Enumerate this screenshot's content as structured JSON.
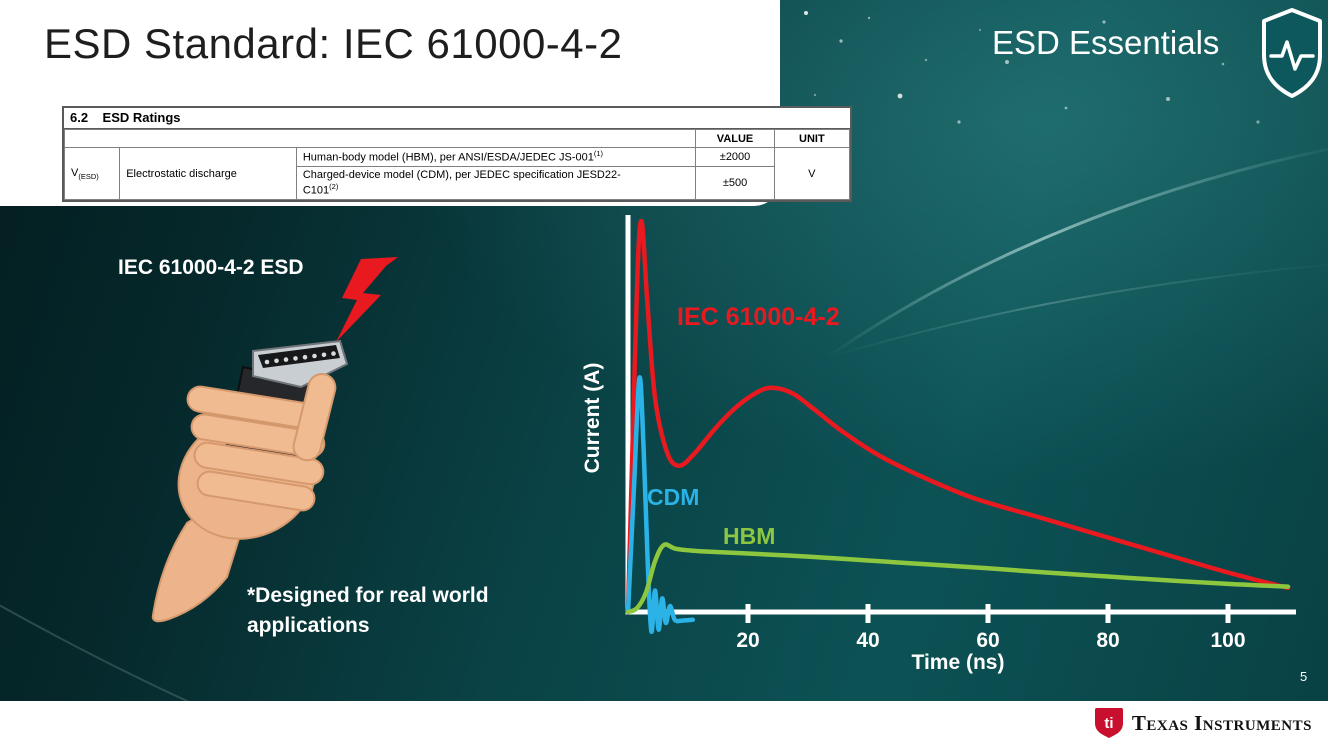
{
  "slide": {
    "title": "ESD Standard: IEC 61000-4-2",
    "brand": "ESD Essentials",
    "page_number": "5",
    "footer_text": "Texas Instruments",
    "footer_bug_text": "ti"
  },
  "ratings_table": {
    "section_title": "6.2    ESD Ratings",
    "col_value": "VALUE",
    "col_unit": "UNIT",
    "param_symbol": "V",
    "param_symbol_sub": "(ESD)",
    "param_name": "Electrostatic discharge",
    "rows": [
      {
        "model": "Human-body model (HBM), per ANSI/ESDA/JEDEC JS-001",
        "sup": "(1)",
        "value": "±2000"
      },
      {
        "model": "Charged-device model (CDM), per JEDEC specification JESD22-",
        "model2": "C101",
        "sup": "(2)",
        "value": "±500"
      }
    ],
    "unit": "V"
  },
  "illustration": {
    "label": "IEC 61000-4-2 ESD",
    "note_line1": "*Designed for real world",
    "note_line2": "applications"
  },
  "chart_data": {
    "type": "line",
    "title": "",
    "xlabel": "Time (ns)",
    "ylabel": "Current (A)",
    "x_ticks": [
      20,
      40,
      60,
      80,
      100
    ],
    "y_ticks": [],
    "xlim": [
      0,
      110
    ],
    "grid": false,
    "legend": "inline-labels",
    "series": [
      {
        "name": "IEC 61000-4-2",
        "color": "#e8191f",
        "points": [
          [
            0,
            0
          ],
          [
            0.8,
            0.45
          ],
          [
            1.6,
            0.88
          ],
          [
            2.3,
            1.0
          ],
          [
            3.2,
            0.8
          ],
          [
            4.5,
            0.55
          ],
          [
            6.5,
            0.41
          ],
          [
            8.5,
            0.375
          ],
          [
            11,
            0.405
          ],
          [
            14.5,
            0.47
          ],
          [
            18,
            0.525
          ],
          [
            21.5,
            0.563
          ],
          [
            24,
            0.575
          ],
          [
            27.5,
            0.56
          ],
          [
            31,
            0.52
          ],
          [
            36,
            0.46
          ],
          [
            42,
            0.4
          ],
          [
            50,
            0.34
          ],
          [
            58,
            0.29
          ],
          [
            68,
            0.245
          ],
          [
            78,
            0.2
          ],
          [
            88,
            0.155
          ],
          [
            98,
            0.11
          ],
          [
            104,
            0.085
          ],
          [
            110,
            0.062
          ]
        ]
      },
      {
        "name": "CDM",
        "color": "#2bb3e8",
        "points": [
          [
            0,
            0
          ],
          [
            1.0,
            0.32
          ],
          [
            1.9,
            0.6
          ],
          [
            2.6,
            0.42
          ],
          [
            3.3,
            0.12
          ],
          [
            3.9,
            -0.05
          ],
          [
            4.5,
            0.055
          ],
          [
            5.1,
            -0.045
          ],
          [
            5.7,
            0.035
          ],
          [
            6.3,
            -0.028
          ],
          [
            7.0,
            0.015
          ],
          [
            7.8,
            -0.02
          ],
          [
            9,
            -0.022
          ],
          [
            10.8,
            -0.02
          ]
        ]
      },
      {
        "name": "HBM",
        "color": "#8dc63f",
        "points": [
          [
            0,
            0
          ],
          [
            1.5,
            0.01
          ],
          [
            3,
            0.05
          ],
          [
            4.5,
            0.13
          ],
          [
            6,
            0.172
          ],
          [
            8,
            0.162
          ],
          [
            12,
            0.156
          ],
          [
            20,
            0.15
          ],
          [
            30,
            0.142
          ],
          [
            40,
            0.132
          ],
          [
            50,
            0.122
          ],
          [
            60,
            0.112
          ],
          [
            70,
            0.101
          ],
          [
            80,
            0.091
          ],
          [
            90,
            0.081
          ],
          [
            100,
            0.072
          ],
          [
            110,
            0.065
          ]
        ]
      }
    ]
  },
  "colors": {
    "background_teal": "#0a4a4c",
    "iec_red": "#e8191f",
    "cdm_blue": "#2bb3e8",
    "hbm_green": "#8dc63f",
    "ti_red": "#c8102e",
    "text_white": "#ffffff",
    "title_black": "#1e1e1e"
  }
}
